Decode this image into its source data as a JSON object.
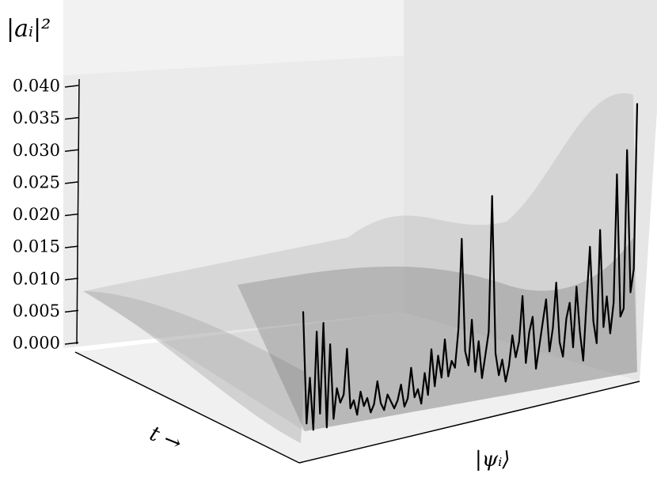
{
  "chart_data": {
    "type": "line3d",
    "z_label": "|aᵢ|²",
    "x_label": "t →",
    "y_label": "|ψᵢ⟩",
    "color": "#000000",
    "zlim": [
      0,
      0.04
    ],
    "zticks": [
      {
        "value": 0,
        "label": "0.000"
      },
      {
        "value": 0.005,
        "label": "0.005"
      },
      {
        "value": 0.01,
        "label": "0.010"
      },
      {
        "value": 0.015,
        "label": "0.015"
      },
      {
        "value": 0.02,
        "label": "0.020"
      },
      {
        "value": 0.025,
        "label": "0.025"
      },
      {
        "value": 0.03,
        "label": "0.030"
      },
      {
        "value": 0.035,
        "label": "0.035"
      },
      {
        "value": 0.04,
        "label": "0.040"
      }
    ],
    "values": [
      0.017,
      0.002,
      0.008,
      0.001,
      0.014,
      0.003,
      0.015,
      0.001,
      0.012,
      0.002,
      0.006,
      0.004,
      0.005,
      0.011,
      0.003,
      0.004,
      0.002,
      0.005,
      0.003,
      0.004,
      0.002,
      0.003,
      0.006,
      0.003,
      0.002,
      0.004,
      0.003,
      0.002,
      0.003,
      0.005,
      0.002,
      0.003,
      0.007,
      0.003,
      0.004,
      0.002,
      0.006,
      0.003,
      0.009,
      0.004,
      0.008,
      0.005,
      0.01,
      0.005,
      0.007,
      0.006,
      0.011,
      0.023,
      0.008,
      0.006,
      0.012,
      0.005,
      0.009,
      0.004,
      0.007,
      0.01,
      0.028,
      0.007,
      0.004,
      0.006,
      0.003,
      0.005,
      0.009,
      0.006,
      0.008,
      0.014,
      0.005,
      0.009,
      0.011,
      0.004,
      0.007,
      0.01,
      0.013,
      0.006,
      0.009,
      0.015,
      0.007,
      0.005,
      0.01,
      0.012,
      0.006,
      0.014,
      0.008,
      0.004,
      0.012,
      0.019,
      0.009,
      0.006,
      0.021,
      0.008,
      0.012,
      0.007,
      0.011,
      0.028,
      0.009,
      0.01,
      0.031,
      0.012,
      0.015,
      0.037
    ]
  }
}
